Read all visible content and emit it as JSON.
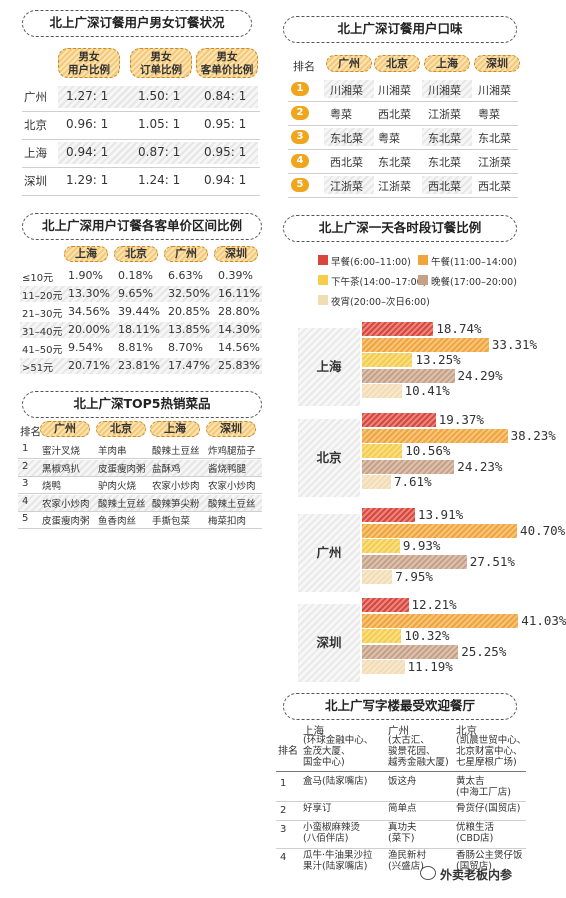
{
  "colors": {
    "breakfast": "#d9463c",
    "lunch": "#f0a53a",
    "afternoon": "#f5cd4a",
    "dinner": "#c7a086",
    "night": "#f2dcb3"
  },
  "gender": {
    "title": "北上广深订餐用户男女订餐状况",
    "headers": [
      "男女\n用户比例",
      "男女\n订单比例",
      "男女\n客单价比例"
    ],
    "rows": [
      {
        "city": "广州",
        "v": [
          "1.27: 1",
          "1.50: 1",
          "0.84: 1"
        ]
      },
      {
        "city": "北京",
        "v": [
          "0.96: 1",
          "1.05: 1",
          "0.95: 1"
        ]
      },
      {
        "city": "上海",
        "v": [
          "0.94: 1",
          "0.87: 1",
          "0.95: 1"
        ]
      },
      {
        "city": "深圳",
        "v": [
          "1.29: 1",
          "1.24: 1",
          "0.94: 1"
        ]
      }
    ]
  },
  "taste": {
    "title": "北上广深订餐用户口味",
    "rank_label": "排名",
    "cities": [
      "广州",
      "北京",
      "上海",
      "深圳"
    ],
    "rows": [
      {
        "rank": "1",
        "v": [
          "川湘菜",
          "川湘菜",
          "川湘菜",
          "川湘菜"
        ]
      },
      {
        "rank": "2",
        "v": [
          "粤菜",
          "西北菜",
          "江浙菜",
          "粤菜"
        ]
      },
      {
        "rank": "3",
        "v": [
          "东北菜",
          "粤菜",
          "东北菜",
          "东北菜"
        ]
      },
      {
        "rank": "4",
        "v": [
          "西北菜",
          "东北菜",
          "东北菜",
          "江浙菜"
        ]
      },
      {
        "rank": "5",
        "v": [
          "江浙菜",
          "江浙菜",
          "西北菜",
          "西北菜"
        ]
      }
    ]
  },
  "price": {
    "title": "北上广深用户订餐各客单价区间比例",
    "cities": [
      "上海",
      "北京",
      "广州",
      "深圳"
    ],
    "rows": [
      {
        "range": "≤10元",
        "v": [
          "1.90%",
          "0.18%",
          "6.63%",
          "0.39%"
        ]
      },
      {
        "range": "11–20元",
        "v": [
          "13.30%",
          "9.65%",
          "32.50%",
          "16.11%"
        ]
      },
      {
        "range": "21–30元",
        "v": [
          "34.56%",
          "39.44%",
          "20.85%",
          "28.80%"
        ]
      },
      {
        "range": "31–40元",
        "v": [
          "20.00%",
          "18.11%",
          "13.85%",
          "14.30%"
        ]
      },
      {
        "range": "41–50元",
        "v": [
          "9.54%",
          "8.81%",
          "8.70%",
          "14.56%"
        ]
      },
      {
        "range": ">51元",
        "v": [
          "20.71%",
          "23.81%",
          "17.47%",
          "25.83%"
        ]
      }
    ]
  },
  "top5": {
    "title": "北上广深TOP5热销菜品",
    "rank_label": "排名",
    "cities": [
      "广州",
      "北京",
      "上海",
      "深圳"
    ],
    "rows": [
      {
        "rank": "1",
        "v": [
          "蜜汁叉烧",
          "羊肉串",
          "酸辣土豆丝",
          "炸鸡腿茄子"
        ]
      },
      {
        "rank": "2",
        "v": [
          "黑椒鸡扒",
          "皮蛋瘦肉粥",
          "盐酥鸡",
          "酱烧鸭腿"
        ]
      },
      {
        "rank": "3",
        "v": [
          "烧鸭",
          "驴肉火烧",
          "农家小炒肉",
          "农家小炒肉"
        ]
      },
      {
        "rank": "4",
        "v": [
          "农家小炒肉",
          "酸辣土豆丝",
          "酸辣笋尖粉",
          "酸辣土豆丝"
        ]
      },
      {
        "rank": "5",
        "v": [
          "皮蛋瘦肉粥",
          "鱼香肉丝",
          "手撕包菜",
          "梅菜扣肉"
        ]
      }
    ]
  },
  "chart_data": {
    "type": "bar",
    "title": "北上广深一天各时段订餐比例",
    "legend": [
      "早餐(6:00–11:00)",
      "午餐(11:00–14:00)",
      "下午茶(14:00–17:00)",
      "晚餐(17:00–20:00)",
      "夜宵(20:00–次日6:00)"
    ],
    "categories": [
      "上海",
      "北京",
      "广州",
      "深圳"
    ],
    "series": [
      {
        "name": "早餐(6:00–11:00)",
        "values": [
          18.74,
          19.37,
          13.91,
          12.21
        ]
      },
      {
        "name": "午餐(11:00–14:00)",
        "values": [
          33.31,
          38.23,
          40.7,
          41.03
        ]
      },
      {
        "name": "下午茶(14:00–17:00)",
        "values": [
          13.25,
          10.56,
          9.93,
          10.32
        ]
      },
      {
        "name": "晚餐(17:00–20:00)",
        "values": [
          24.29,
          24.23,
          27.51,
          25.25
        ]
      },
      {
        "name": "夜宵(20:00–次日6:00)",
        "values": [
          10.41,
          7.61,
          7.95,
          11.19
        ]
      }
    ],
    "labels": [
      [
        "18.74%",
        "33.31%",
        "13.25%",
        "24.29%",
        "10.41%"
      ],
      [
        "19.37%",
        "38.23%",
        "10.56%",
        "24.23%",
        "7.61%"
      ],
      [
        "13.91%",
        "40.70%",
        "9.93%",
        "27.51%",
        "7.95%"
      ],
      [
        "12.21%",
        "41.03%",
        "10.32%",
        "25.25%",
        "11.19%"
      ]
    ]
  },
  "office": {
    "title": "北上广写字楼最受欢迎餐厅",
    "rank_label": "排名",
    "headers": [
      {
        "city": "上海",
        "sub": "(环球金融中心、\n金茂大厦、\n国金中心)"
      },
      {
        "city": "广州",
        "sub": "(太古汇、\n骏景花园、\n越秀金融大厦)"
      },
      {
        "city": "北京",
        "sub": "(凯晨世贸中心、\n北京财富中心、\n七星摩根广场)"
      }
    ],
    "rows": [
      {
        "rank": "1",
        "v": [
          "盒马(陆家嘴店)",
          "饭这舟",
          "黄太吉\n(中海工厂店)"
        ]
      },
      {
        "rank": "2",
        "v": [
          "好享订",
          "简单点",
          "骨货仔(国贸店)"
        ]
      },
      {
        "rank": "3",
        "v": [
          "小蛮椒麻辣烫\n(八佰伴店)",
          "真功夫\n(菜下)",
          "优粮生活\n(CBD店)"
        ]
      },
      {
        "rank": "4",
        "v": [
          "瓜牛·牛油果沙拉\n果汁(陆家嘴店)",
          "渔民新村\n(兴盛店)",
          "香肠公主煲仔饭\n(国贸店)"
        ]
      }
    ]
  },
  "watermark": "外卖老板内参"
}
